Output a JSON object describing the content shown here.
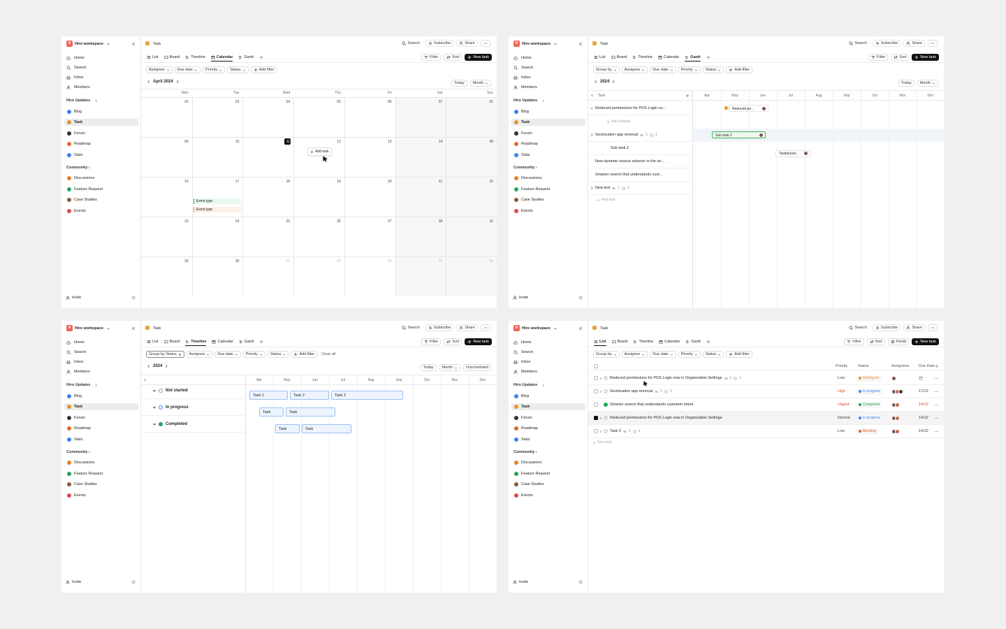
{
  "sidebar": {
    "logo": "H",
    "workspace": "Hiro workspace",
    "nav": [
      "Home",
      "Search",
      "Inbox",
      "Members"
    ],
    "sections": [
      {
        "title": "Hiro Updates",
        "items": [
          "Blog",
          "Task",
          "Forum",
          "Roadmap",
          "Stats"
        ]
      },
      {
        "title": "Community",
        "items": [
          "Discussions",
          "Feature Request",
          "Case Studies",
          "Events"
        ]
      }
    ],
    "invite": "Invite"
  },
  "header": {
    "page": "Task",
    "search": "Search",
    "subscribe": "Subscribe",
    "share": "Share"
  },
  "tabs": [
    "List",
    "Board",
    "Timeline",
    "Calendar",
    "Gantt"
  ],
  "toolbar": {
    "filter": "Filter",
    "sort": "Sort",
    "fields": "Fields",
    "new_task": "New task"
  },
  "filters": {
    "group_by": "Group by",
    "group_by_status": "Group by Status",
    "assignee": "Assignee",
    "due_date": "Due date",
    "priority": "Priority",
    "status": "Status",
    "add_filter": "Add filter",
    "clear_all": "Clear all"
  },
  "nav_buttons": {
    "today": "Today",
    "month": "Month",
    "unscheduled": "Unscheduled"
  },
  "calendar": {
    "title": "April 2024",
    "weekdays": [
      "Mon",
      "Tue",
      "Wed",
      "Thu",
      "Fri",
      "Sat",
      "Sun"
    ],
    "weeks": [
      [
        "02",
        "03",
        "04",
        "05",
        "06",
        "07",
        "01"
      ],
      [
        "09",
        "10",
        "11",
        "12",
        "13",
        "14",
        "08"
      ],
      [
        "16",
        "17",
        "18",
        "19",
        "20",
        "21",
        "15"
      ],
      [
        "23",
        "24",
        "25",
        "26",
        "27",
        "28",
        "22"
      ],
      [
        "29",
        "30",
        "01",
        "02",
        "03",
        "04",
        "05"
      ]
    ],
    "events": [
      "Event type",
      "Event type"
    ],
    "add_task": "Add task"
  },
  "gantt": {
    "year": "2024",
    "task_header": "Task",
    "months": [
      "Apr",
      "May",
      "Jun",
      "Jul",
      "Aug",
      "Sep",
      "Oct",
      "Nov",
      "Dec"
    ],
    "rows": [
      {
        "title": "Reduced permissions for POS Login no..."
      },
      {
        "action": "Add subtask"
      },
      {
        "title": "Geolocation app removal",
        "subtasks": 1,
        "comments": 1
      },
      {
        "title": "Sub task 2"
      },
      {
        "title": "New dynamic source selector in the on..."
      },
      {
        "title": "Smarter search that understands cust..."
      },
      {
        "title": "New test",
        "subtasks": 1,
        "comments": 1
      },
      {
        "action": "Add task"
      }
    ],
    "bars": [
      "Reduced pe...",
      "Sub task 2",
      "Taskduced..."
    ]
  },
  "timeline": {
    "year": "2024",
    "months": [
      "Apr",
      "May",
      "Jun",
      "Jul",
      "Aug",
      "Sep",
      "Oct",
      "Nov",
      "Dec"
    ],
    "groups": [
      {
        "name": "Not started",
        "tasks": [
          "Task 1",
          "Task 2",
          "Task 2"
        ]
      },
      {
        "name": "In progress",
        "tasks": [
          "Task",
          "Task"
        ]
      },
      {
        "name": "Completed",
        "tasks": [
          "Task",
          "Task"
        ]
      }
    ]
  },
  "list": {
    "columns": [
      "Priority",
      "Status",
      "Assignees",
      "Due Date"
    ],
    "rows": [
      {
        "title": "Reduced permissions for POS Login now in Organization Settings",
        "subtasks": 1,
        "comments": 1,
        "priority": "Low",
        "priority_color": "#444",
        "status": "Waiting for",
        "status_color": "#e8912d"
      },
      {
        "title": "Geolocation app removal",
        "subtasks": 1,
        "comments": 1,
        "priority": "High",
        "priority_color": "#e0622b",
        "status": "In progress",
        "status_color": "#3b82f6",
        "due": "17/12"
      },
      {
        "title": "Smarter search that understands customer intent",
        "priority": "Urgent",
        "priority_color": "#d93b3b",
        "status": "Completed",
        "status_color": "#22a55b",
        "due": "14/12",
        "due_color": "#d93b3b"
      },
      {
        "title": "Reduced permissions for POS Login now in Organization Settings",
        "priority": "Normal",
        "priority_color": "#444",
        "status": "In progress",
        "status_color": "#3b82f6",
        "due": "14/12"
      },
      {
        "title": "Task 2",
        "subtasks": 1,
        "comments": 1,
        "priority": "Low",
        "priority_color": "#444",
        "status": "Blocking",
        "status_color": "#e0622b",
        "due": "14/12"
      }
    ],
    "new_task": "New task"
  }
}
